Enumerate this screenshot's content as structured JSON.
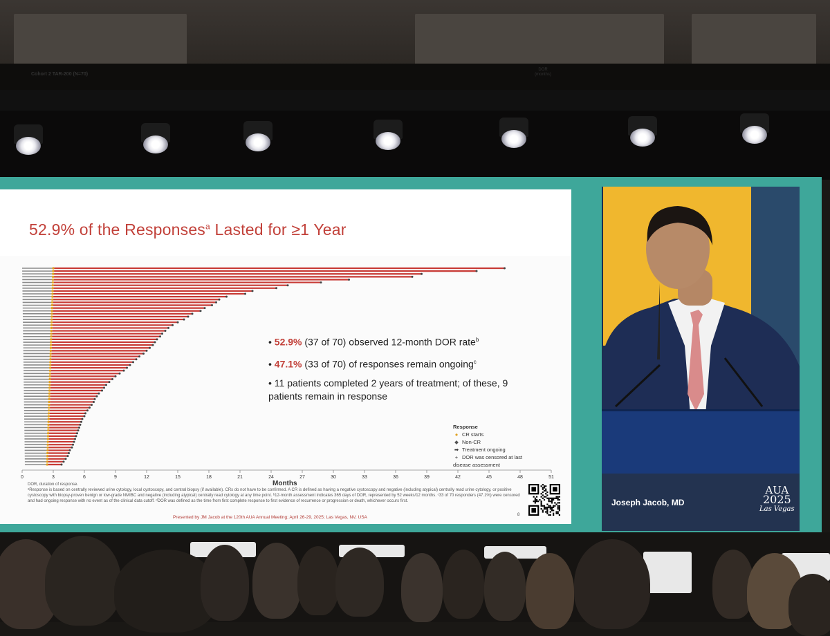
{
  "slide": {
    "title_main": "52.9% of the Responses",
    "title_sup": "a",
    "title_tail": " Lasted for ≥1 Year",
    "cohort_label": "Cohort 2 TAR-200 (N=70)",
    "dor_header": "DOR (months)",
    "bullets": [
      {
        "highlight": "52.9%",
        "text": " (37 of 70) observed 12-month DOR rate",
        "sup": "b"
      },
      {
        "highlight": "47.1%",
        "text": " (33 of 70) of responses remain ongoing",
        "sup": "c"
      },
      {
        "highlight": "",
        "text": "11 patients completed 2 years of treatment; of these, 9 patients remain in response",
        "sup": ""
      }
    ],
    "legend": {
      "title": "Response",
      "items": [
        {
          "label": "CR starts",
          "symbol": "●",
          "color": "#e0a020"
        },
        {
          "label": "Non-CR",
          "symbol": "◆",
          "color": "#555555"
        },
        {
          "label": "Treatment ongoing",
          "symbol": "➡",
          "color": "#333333"
        },
        {
          "label": "DOR was censored at last disease assessment",
          "symbol": "+",
          "color": "#333333"
        }
      ]
    },
    "x_axis_title": "Months",
    "footnote_1": "DOR, duration of response.",
    "footnote_2": "ᵃResponse is based on centrally reviewed urine cytology, local cystoscopy, and central biopsy (if available). CRs do not have to be confirmed. A CR is defined as having a negative cystoscopy and negative (including atypical) centrally read urine cytology, or positive cystoscopy with biopsy-proven benign or low-grade NMIBC and negative (including atypical) centrally read cytology at any time point. ᵇ12-month assessment indicates 365 days of DOR, represented by 52 weeks/12 months. ᶜ33 of 70 responders (47.1%) were censored and had ongoing response with no event as of the clinical data cutoff. ᵈDOR was defined as the time from first complete response to first evidence of recurrence or progression or death, whichever occurs first.",
    "presented_by": "Presented by JM Jacob at the 120th AUA Annual Meeting; April 26-29, 2025; Las Vegas, NV, USA",
    "slide_number": "8"
  },
  "speaker": {
    "name": "Joseph Jacob, MD",
    "event_line1": "AUA",
    "event_line2": "2025",
    "event_dates": "APR 26-29",
    "event_city": "Las Vegas"
  },
  "chart_data": {
    "type": "bar",
    "orientation": "horizontal",
    "x_label": "Months",
    "x_ticks": [
      0,
      3,
      6,
      9,
      12,
      15,
      18,
      21,
      24,
      27,
      30,
      33,
      36,
      39,
      42,
      45,
      48,
      51
    ],
    "xlim": [
      0,
      51
    ],
    "n_patients": 70,
    "cr_start_month": 3,
    "colors": {
      "response": "#c83a35",
      "pre_response": "#8a8a8a",
      "cr_start": "#e0a020",
      "end_marker": "#444444"
    },
    "series": [
      {
        "values_months": [
          46.5,
          43.8,
          38.5,
          37.6,
          31.5,
          28.8,
          25.6,
          24.5,
          22.2,
          21.5,
          19.7,
          19.0,
          18.7,
          18.3,
          17.6,
          17.2,
          16.4,
          16.0,
          15.6,
          15.0,
          14.5,
          14.1,
          13.8,
          13.5,
          13.3,
          13.0,
          12.8,
          12.6,
          12.3,
          12.0,
          11.7,
          11.3,
          11.0,
          10.7,
          10.4,
          10.1,
          9.8,
          9.4,
          9.0,
          8.7,
          8.4,
          8.1,
          7.9,
          7.7,
          7.4,
          7.2,
          7.0,
          6.9,
          6.7,
          6.5,
          6.3,
          6.1,
          6.0,
          5.8,
          5.7,
          5.6,
          5.5,
          5.4,
          5.3,
          5.2,
          5.1,
          5.0,
          4.9,
          4.8,
          4.6,
          4.5,
          4.4,
          4.2,
          4.0,
          3.8
        ]
      }
    ]
  }
}
